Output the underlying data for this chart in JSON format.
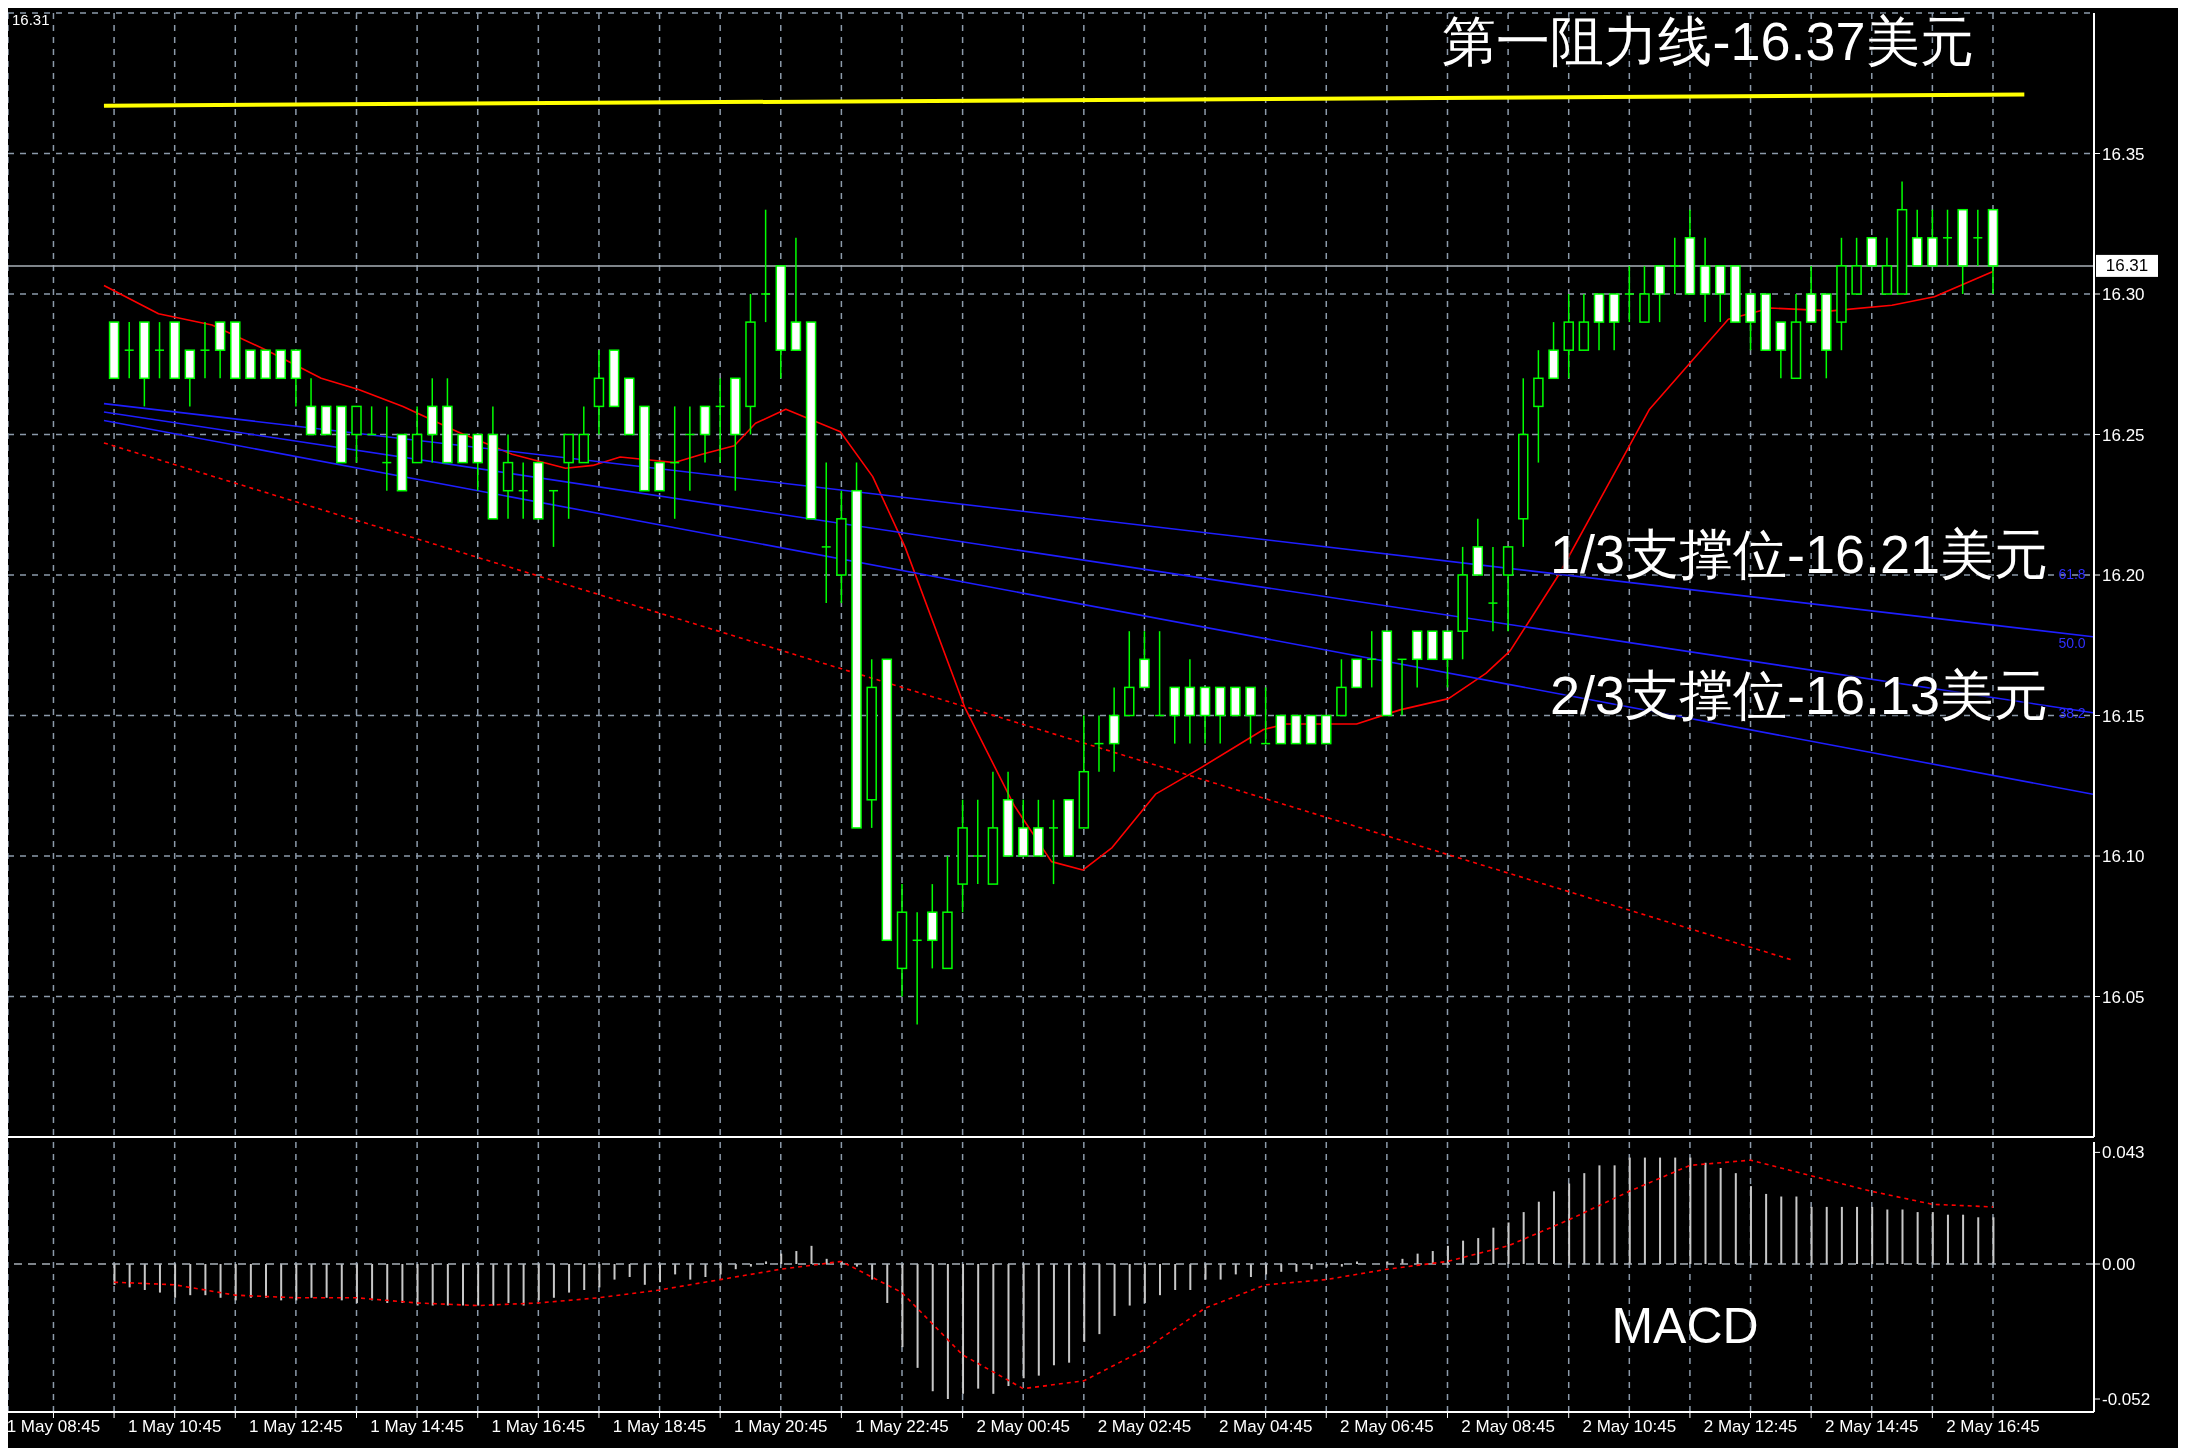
{
  "chart_data": [
    {
      "type": "candlestick",
      "color": "#00ff00",
      "grid": true,
      "tick_labels": "y",
      "xlim": [
        "--05-01T08:00",
        "--05-02T18:25"
      ],
      "xticks": [
        {
          "value": "--05-01T08:45",
          "label": "1 May 08:45"
        },
        {
          "value": "--05-01T09:45",
          "label": null
        },
        {
          "value": "--05-01T10:45",
          "label": "1 May 10:45"
        },
        {
          "value": "--05-01T11:45",
          "label": null
        },
        {
          "value": "--05-01T12:45",
          "label": "1 May 12:45"
        },
        {
          "value": "--05-01T13:45",
          "label": null
        },
        {
          "value": "--05-01T14:45",
          "label": "1 May 14:45"
        },
        {
          "value": "--05-01T15:45",
          "label": null
        },
        {
          "value": "--05-01T16:45",
          "label": "1 May 16:45"
        },
        {
          "value": "--05-01T17:45",
          "label": null
        },
        {
          "value": "--05-01T18:45",
          "label": "1 May 18:45"
        },
        {
          "value": "--05-01T19:45",
          "label": null
        },
        {
          "value": "--05-01T20:45",
          "label": "1 May 20:45"
        },
        {
          "value": "--05-01T21:45",
          "label": null
        },
        {
          "value": "--05-01T22:45",
          "label": "1 May 22:45"
        },
        {
          "value": "--05-01T23:45",
          "label": null
        },
        {
          "value": "--05-02T00:45",
          "label": "2 May 00:45"
        },
        {
          "value": "--05-02T01:45",
          "label": null
        },
        {
          "value": "--05-02T02:45",
          "label": "2 May 02:45"
        },
        {
          "value": "--05-02T03:45",
          "label": null
        },
        {
          "value": "--05-02T04:45",
          "label": "2 May 04:45"
        },
        {
          "value": "--05-02T05:45",
          "label": null
        },
        {
          "value": "--05-02T06:45",
          "label": "2 May 06:45"
        },
        {
          "value": "--05-02T07:45",
          "label": null
        },
        {
          "value": "--05-02T08:45",
          "label": "2 May 08:45"
        },
        {
          "value": "--05-02T09:45",
          "label": null
        },
        {
          "value": "--05-02T10:45",
          "label": "2 May 10:45"
        },
        {
          "value": "--05-02T11:45",
          "label": null
        },
        {
          "value": "--05-02T12:45",
          "label": "2 May 12:45"
        },
        {
          "value": "--05-02T13:45",
          "label": null
        },
        {
          "value": "--05-02T14:45",
          "label": "2 May 14:45"
        },
        {
          "value": "--05-02T15:45",
          "label": null
        },
        {
          "value": "--05-02T16:45",
          "label": "2 May 16:45"
        }
      ],
      "ylim": [
        16.0,
        16.4
      ],
      "yticks": [
        16.05,
        {
          "value": 16.1,
          "label": "16.10"
        },
        16.15,
        {
          "value": 16.2,
          "label": "16.20"
        },
        16.25,
        {
          "value": 16.3,
          "label": "16.30"
        },
        16.35
      ],
      "x": [
        "--05-01T09:45",
        "--05-01T10:00",
        "--05-01T10:15",
        "--05-01T10:30",
        "--05-01T10:45",
        "--05-01T11:00",
        "--05-01T11:15",
        "--05-01T11:30",
        "--05-01T11:45",
        "--05-01T12:00",
        "--05-01T12:15",
        "--05-01T12:30",
        "--05-01T12:45",
        "--05-01T13:00",
        "--05-01T13:15",
        "--05-01T13:30",
        "--05-01T13:45",
        "--05-01T14:00",
        "--05-01T14:15",
        "--05-01T14:30",
        "--05-01T14:45",
        "--05-01T15:00",
        "--05-01T15:15",
        "--05-01T15:30",
        "--05-01T15:45",
        "--05-01T16:00",
        "--05-01T16:15",
        "--05-01T16:30",
        "--05-01T16:45",
        "--05-01T17:00",
        "--05-01T17:15",
        "--05-01T17:30",
        "--05-01T17:45",
        "--05-01T18:00",
        "--05-01T18:15",
        "--05-01T18:30",
        "--05-01T18:45",
        "--05-01T19:00",
        "--05-01T19:15",
        "--05-01T19:30",
        "--05-01T19:45",
        "--05-01T20:00",
        "--05-01T20:15",
        "--05-01T20:30",
        "--05-01T20:45",
        "--05-01T21:00",
        "--05-01T21:15",
        "--05-01T21:30",
        "--05-01T21:45",
        "--05-01T22:00",
        "--05-01T22:15",
        "--05-01T22:30",
        "--05-01T22:45",
        "--05-01T23:00",
        "--05-01T23:15",
        "--05-01T23:30",
        "--05-01T23:45",
        "--05-02T00:00",
        "--05-02T00:15",
        "--05-02T00:30",
        "--05-02T00:45",
        "--05-02T01:00",
        "--05-02T01:15",
        "--05-02T01:30",
        "--05-02T01:45",
        "--05-02T02:00",
        "--05-02T02:15",
        "--05-02T02:30",
        "--05-02T02:45",
        "--05-02T03:00",
        "--05-02T03:15",
        "--05-02T03:30",
        "--05-02T03:45",
        "--05-02T04:00",
        "--05-02T04:15",
        "--05-02T04:30",
        "--05-02T04:45",
        "--05-02T05:00",
        "--05-02T05:15",
        "--05-02T05:30",
        "--05-02T05:45",
        "--05-02T06:00",
        "--05-02T06:15",
        "--05-02T06:30",
        "--05-02T06:45",
        "--05-02T07:00",
        "--05-02T07:15",
        "--05-02T07:30",
        "--05-02T07:45",
        "--05-02T08:00",
        "--05-02T08:15",
        "--05-02T08:30",
        "--05-02T08:45",
        "--05-02T09:00",
        "--05-02T09:15",
        "--05-02T09:30",
        "--05-02T09:45",
        "--05-02T10:00",
        "--05-02T10:15",
        "--05-02T10:30",
        "--05-02T10:45",
        "--05-02T11:00",
        "--05-02T11:15",
        "--05-02T11:30",
        "--05-02T11:45",
        "--05-02T12:00",
        "--05-02T12:15",
        "--05-02T12:30",
        "--05-02T12:45",
        "--05-02T13:00",
        "--05-02T13:15",
        "--05-02T13:30",
        "--05-02T13:45",
        "--05-02T14:00",
        "--05-02T14:15",
        "--05-02T14:30",
        "--05-02T14:45",
        "--05-02T15:00",
        "--05-02T15:15",
        "--05-02T15:30",
        "--05-02T15:45",
        "--05-02T16:00",
        "--05-02T16:15",
        "--05-02T16:30",
        "--05-02T16:45"
      ],
      "ohlc": [
        [
          16.29,
          16.29,
          16.27,
          16.27
        ],
        [
          16.28,
          16.29,
          16.27,
          16.28
        ],
        [
          16.29,
          16.29,
          16.26,
          16.27
        ],
        [
          16.28,
          16.29,
          16.27,
          16.28
        ],
        [
          16.29,
          16.29,
          16.27,
          16.27
        ],
        [
          16.28,
          16.28,
          16.26,
          16.27
        ],
        [
          16.28,
          16.29,
          16.27,
          16.28
        ],
        [
          16.29,
          16.29,
          16.27,
          16.28
        ],
        [
          16.29,
          16.29,
          16.27,
          16.27
        ],
        [
          16.28,
          16.28,
          16.27,
          16.27
        ],
        [
          16.28,
          16.28,
          16.27,
          16.27
        ],
        [
          16.28,
          16.28,
          16.27,
          16.27
        ],
        [
          16.28,
          16.28,
          16.26,
          16.27
        ],
        [
          16.26,
          16.27,
          16.25,
          16.25
        ],
        [
          16.26,
          16.26,
          16.25,
          16.25
        ],
        [
          16.26,
          16.26,
          16.24,
          16.24
        ],
        [
          16.25,
          16.26,
          16.24,
          16.26
        ],
        [
          16.25,
          16.26,
          16.25,
          16.25
        ],
        [
          16.24,
          16.26,
          16.23,
          16.24
        ],
        [
          16.25,
          16.25,
          16.23,
          16.23
        ],
        [
          16.24,
          16.26,
          16.24,
          16.25
        ],
        [
          16.26,
          16.27,
          16.24,
          16.25
        ],
        [
          16.26,
          16.27,
          16.24,
          16.24
        ],
        [
          16.25,
          16.25,
          16.24,
          16.24
        ],
        [
          16.25,
          16.25,
          16.23,
          16.24
        ],
        [
          16.25,
          16.26,
          16.22,
          16.22
        ],
        [
          16.23,
          16.25,
          16.22,
          16.24
        ],
        [
          16.23,
          16.24,
          16.22,
          16.23
        ],
        [
          16.24,
          16.24,
          16.22,
          16.22
        ],
        [
          16.23,
          16.23,
          16.21,
          16.23
        ],
        [
          16.24,
          16.25,
          16.22,
          16.25
        ],
        [
          16.24,
          16.26,
          16.24,
          16.25
        ],
        [
          16.26,
          16.28,
          16.25,
          16.27
        ],
        [
          16.28,
          16.28,
          16.26,
          16.26
        ],
        [
          16.27,
          16.27,
          16.25,
          16.25
        ],
        [
          16.26,
          16.26,
          16.23,
          16.23
        ],
        [
          16.24,
          16.24,
          16.23,
          16.23
        ],
        [
          16.24,
          16.26,
          16.22,
          16.24
        ],
        [
          16.25,
          16.26,
          16.23,
          16.25
        ],
        [
          16.26,
          16.26,
          16.24,
          16.25
        ],
        [
          16.26,
          16.27,
          16.24,
          16.26
        ],
        [
          16.27,
          16.27,
          16.23,
          16.25
        ],
        [
          16.26,
          16.3,
          16.25,
          16.29
        ],
        [
          16.3,
          16.33,
          16.29,
          16.3
        ],
        [
          16.31,
          16.31,
          16.27,
          16.28
        ],
        [
          16.29,
          16.32,
          16.28,
          16.28
        ],
        [
          16.29,
          16.29,
          16.22,
          16.22
        ],
        [
          16.21,
          16.24,
          16.19,
          16.21
        ],
        [
          16.2,
          16.23,
          16.19,
          16.22
        ],
        [
          16.23,
          16.24,
          16.11,
          16.11
        ],
        [
          16.12,
          16.17,
          16.11,
          16.16
        ],
        [
          16.17,
          16.17,
          16.07,
          16.07
        ],
        [
          16.06,
          16.09,
          16.05,
          16.08
        ],
        [
          16.07,
          16.08,
          16.04,
          16.07
        ],
        [
          16.08,
          16.09,
          16.06,
          16.07
        ],
        [
          16.06,
          16.1,
          16.06,
          16.08
        ],
        [
          16.09,
          16.12,
          16.08,
          16.11
        ],
        [
          16.1,
          16.12,
          16.09,
          16.1
        ],
        [
          16.09,
          16.13,
          16.09,
          16.11
        ],
        [
          16.12,
          16.13,
          16.1,
          16.1
        ],
        [
          16.11,
          16.12,
          16.1,
          16.1
        ],
        [
          16.11,
          16.12,
          16.1,
          16.1
        ],
        [
          16.11,
          16.12,
          16.09,
          16.11
        ],
        [
          16.12,
          16.12,
          16.1,
          16.1
        ],
        [
          16.11,
          16.15,
          16.11,
          16.13
        ],
        [
          16.14,
          16.15,
          16.13,
          16.14
        ],
        [
          16.15,
          16.16,
          16.13,
          16.14
        ],
        [
          16.15,
          16.18,
          16.15,
          16.16
        ],
        [
          16.17,
          16.18,
          16.16,
          16.16
        ],
        [
          16.15,
          16.18,
          16.15,
          16.15
        ],
        [
          16.16,
          16.16,
          16.14,
          16.15
        ],
        [
          16.16,
          16.17,
          16.14,
          16.15
        ],
        [
          16.16,
          16.16,
          16.14,
          16.15
        ],
        [
          16.16,
          16.16,
          16.14,
          16.15
        ],
        [
          16.16,
          16.16,
          16.15,
          16.15
        ],
        [
          16.16,
          16.16,
          16.14,
          16.15
        ],
        [
          16.14,
          16.16,
          16.14,
          16.14
        ],
        [
          16.15,
          16.15,
          16.14,
          16.14
        ],
        [
          16.15,
          16.15,
          16.14,
          16.14
        ],
        [
          16.15,
          16.15,
          16.14,
          16.14
        ],
        [
          16.15,
          16.15,
          16.14,
          16.14
        ],
        [
          16.15,
          16.17,
          16.15,
          16.16
        ],
        [
          16.17,
          16.17,
          16.16,
          16.16
        ],
        [
          16.17,
          16.18,
          16.16,
          16.17
        ],
        [
          16.18,
          16.18,
          16.15,
          16.15
        ],
        [
          16.17,
          16.17,
          16.15,
          16.17
        ],
        [
          16.18,
          16.18,
          16.16,
          16.17
        ],
        [
          16.18,
          16.18,
          16.17,
          16.17
        ],
        [
          16.18,
          16.18,
          16.16,
          16.17
        ],
        [
          16.18,
          16.21,
          16.17,
          16.2
        ],
        [
          16.21,
          16.22,
          16.2,
          16.2
        ],
        [
          16.19,
          16.21,
          16.18,
          16.19
        ],
        [
          16.2,
          16.21,
          16.18,
          16.21
        ],
        [
          16.22,
          16.27,
          16.21,
          16.25
        ],
        [
          16.26,
          16.28,
          16.24,
          16.27
        ],
        [
          16.28,
          16.29,
          16.27,
          16.27
        ],
        [
          16.28,
          16.3,
          16.27,
          16.29
        ],
        [
          16.28,
          16.3,
          16.28,
          16.29
        ],
        [
          16.3,
          16.3,
          16.28,
          16.29
        ],
        [
          16.3,
          16.3,
          16.28,
          16.29
        ],
        [
          16.3,
          16.31,
          16.29,
          16.3
        ],
        [
          16.29,
          16.31,
          16.29,
          16.3
        ],
        [
          16.31,
          16.31,
          16.29,
          16.3
        ],
        [
          16.31,
          16.32,
          16.3,
          16.31
        ],
        [
          16.32,
          16.33,
          16.3,
          16.3
        ],
        [
          16.31,
          16.32,
          16.29,
          16.3
        ],
        [
          16.31,
          16.31,
          16.29,
          16.3
        ],
        [
          16.31,
          16.31,
          16.29,
          16.29
        ],
        [
          16.3,
          16.3,
          16.28,
          16.29
        ],
        [
          16.3,
          16.3,
          16.28,
          16.28
        ],
        [
          16.29,
          16.29,
          16.27,
          16.28
        ],
        [
          16.27,
          16.3,
          16.27,
          16.29
        ],
        [
          16.3,
          16.31,
          16.29,
          16.29
        ],
        [
          16.3,
          16.3,
          16.27,
          16.28
        ],
        [
          16.29,
          16.32,
          16.28,
          16.31
        ],
        [
          16.3,
          16.32,
          16.3,
          16.31
        ],
        [
          16.32,
          16.32,
          16.31,
          16.31
        ],
        [
          16.3,
          16.32,
          16.3,
          16.31
        ],
        [
          16.3,
          16.34,
          16.3,
          16.33
        ],
        [
          16.32,
          16.33,
          16.31,
          16.31
        ],
        [
          16.32,
          16.33,
          16.31,
          16.31
        ],
        [
          16.32,
          16.33,
          16.31,
          16.32
        ],
        [
          16.33,
          16.33,
          16.3,
          16.31
        ],
        [
          16.32,
          16.33,
          16.31,
          16.32
        ],
        [
          16.33,
          16.33,
          16.3,
          16.31
        ]
      ],
      "series": [
        {
          "type": "line",
          "color": "#ff0000",
          "x": [
            "--05-01T09:35",
            "--05-01T10:29",
            "--05-01T11:22",
            "--05-01T12:16",
            "--05-01T13:10",
            "--05-01T13:47",
            "--05-01T14:31",
            "--05-01T15:25",
            "--05-01T16:19",
            "--05-01T17:12",
            "--05-01T17:39",
            "--05-01T18:06",
            "--05-01T18:33",
            "--05-01T19:00",
            "--05-01T19:27",
            "--05-01T19:59",
            "--05-01T20:20",
            "--05-01T20:50",
            "--05-01T21:44",
            "--05-01T22:16",
            "--05-01T22:48",
            "--05-01T23:47",
            "--05-02T00:36",
            "--05-02T01:13",
            "--05-02T01:44",
            "--05-02T02:13",
            "--05-02T02:56",
            "--05-02T03:39",
            "--05-02T04:43",
            "--05-02T05:05",
            "--05-02T06:15",
            "--05-02T06:58",
            "--05-02T07:46",
            "--05-02T08:23",
            "--05-02T08:47",
            "--05-02T09:35",
            "--05-02T11:05",
            "--05-02T12:23",
            "--05-02T13:05",
            "--05-02T14:05",
            "--05-02T15:05",
            "--05-02T15:47",
            "--05-02T16:45"
          ],
          "values": [
            16.303,
            16.293,
            16.289,
            16.28,
            16.27,
            16.266,
            16.26,
            16.251,
            16.243,
            16.238,
            16.239,
            16.242,
            16.241,
            16.24,
            16.243,
            16.246,
            16.254,
            16.259,
            16.251,
            16.235,
            16.21,
            16.153,
            16.118,
            16.098,
            16.095,
            16.103,
            16.122,
            16.131,
            16.145,
            16.147,
            16.147,
            16.152,
            16.156,
            16.165,
            16.173,
            16.2,
            16.259,
            16.291,
            16.295,
            16.294,
            16.296,
            16.299,
            16.308
          ]
        },
        {
          "type": "line",
          "color": "#1e1eff",
          "x": [
            "--05-01T09:35",
            "--05-02T18:24"
          ],
          "values": [
            16.261,
            16.178
          ]
        },
        {
          "type": "line",
          "color": "#1e1eff",
          "x": [
            "--05-01T09:35",
            "--05-02T18:24"
          ],
          "values": [
            16.258,
            16.151
          ]
        },
        {
          "type": "line",
          "color": "#1e1eff",
          "x": [
            "--05-01T09:35",
            "--05-02T18:24"
          ],
          "values": [
            16.255,
            16.122
          ]
        },
        {
          "type": "line",
          "color": "#ff0000",
          "line_style": "dotted",
          "x": [
            "--05-01T09:35",
            "--05-02T13:26"
          ],
          "values": [
            16.247,
            16.063
          ]
        },
        {
          "type": "line",
          "color": "#ffff00",
          "x": [
            "--05-01T09:35",
            "--05-02T17:16"
          ],
          "values": [
            16.367,
            16.371
          ]
        }
      ],
      "ref_lines": [
        {
          "axis": "y",
          "value": 16.31,
          "label": "16.31",
          "color": "#a8b0b8"
        }
      ],
      "annotations": [
        "16.31",
        "第一阻力线-16.37美元",
        "1/3支撑位-16.21美元",
        "2/3支撑位-16.13美元",
        "61.8",
        "50.0",
        "38.2"
      ]
    },
    {
      "type": "bar",
      "grid": "x",
      "xlim": [
        "--05-01T08:00",
        "--05-02T18:25"
      ],
      "xticks": [
        {
          "value": "--05-01T08:45",
          "label": "1 May 08:45"
        },
        {
          "value": "--05-01T09:45",
          "label": null
        },
        {
          "value": "--05-01T10:45",
          "label": "1 May 10:45"
        },
        {
          "value": "--05-01T11:45",
          "label": null
        },
        {
          "value": "--05-01T12:45",
          "label": "1 May 12:45"
        },
        {
          "value": "--05-01T13:45",
          "label": null
        },
        {
          "value": "--05-01T14:45",
          "label": "1 May 14:45"
        },
        {
          "value": "--05-01T15:45",
          "label": null
        },
        {
          "value": "--05-01T16:45",
          "label": "1 May 16:45"
        },
        {
          "value": "--05-01T17:45",
          "label": null
        },
        {
          "value": "--05-01T18:45",
          "label": "1 May 18:45"
        },
        {
          "value": "--05-01T19:45",
          "label": null
        },
        {
          "value": "--05-01T20:45",
          "label": "1 May 20:45"
        },
        {
          "value": "--05-01T21:45",
          "label": null
        },
        {
          "value": "--05-01T22:45",
          "label": "1 May 22:45"
        },
        {
          "value": "--05-01T23:45",
          "label": null
        },
        {
          "value": "--05-02T00:45",
          "label": "2 May 00:45"
        },
        {
          "value": "--05-02T01:45",
          "label": null
        },
        {
          "value": "--05-02T02:45",
          "label": "2 May 02:45"
        },
        {
          "value": "--05-02T03:45",
          "label": null
        },
        {
          "value": "--05-02T04:45",
          "label": "2 May 04:45"
        },
        {
          "value": "--05-02T05:45",
          "label": null
        },
        {
          "value": "--05-02T06:45",
          "label": "2 May 06:45"
        },
        {
          "value": "--05-02T07:45",
          "label": null
        },
        {
          "value": "--05-02T08:45",
          "label": "2 May 08:45"
        },
        {
          "value": "--05-02T09:45",
          "label": null
        },
        {
          "value": "--05-02T10:45",
          "label": "2 May 10:45"
        },
        {
          "value": "--05-02T11:45",
          "label": null
        },
        {
          "value": "--05-02T12:45",
          "label": "2 May 12:45"
        },
        {
          "value": "--05-02T13:45",
          "label": null
        },
        {
          "value": "--05-02T14:45",
          "label": "2 May 14:45"
        },
        {
          "value": "--05-02T15:45",
          "label": null
        },
        {
          "value": "--05-02T16:45",
          "label": "2 May 16:45"
        }
      ],
      "ylim": [
        -0.057,
        0.047
      ],
      "yticks": [
        -0.052,
        {
          "value": 0,
          "label": "0.00"
        },
        0.043
      ],
      "x": [
        "--05-01T09:45",
        "--05-01T10:00",
        "--05-01T10:15",
        "--05-01T10:30",
        "--05-01T10:45",
        "--05-01T11:00",
        "--05-01T11:15",
        "--05-01T11:30",
        "--05-01T11:45",
        "--05-01T12:00",
        "--05-01T12:15",
        "--05-01T12:30",
        "--05-01T12:45",
        "--05-01T13:00",
        "--05-01T13:15",
        "--05-01T13:30",
        "--05-01T13:45",
        "--05-01T14:00",
        "--05-01T14:15",
        "--05-01T14:30",
        "--05-01T14:45",
        "--05-01T15:00",
        "--05-01T15:15",
        "--05-01T15:30",
        "--05-01T15:45",
        "--05-01T16:00",
        "--05-01T16:15",
        "--05-01T16:30",
        "--05-01T16:45",
        "--05-01T17:00",
        "--05-01T17:15",
        "--05-01T17:30",
        "--05-01T17:45",
        "--05-01T18:00",
        "--05-01T18:15",
        "--05-01T18:30",
        "--05-01T18:45",
        "--05-01T19:00",
        "--05-01T19:15",
        "--05-01T19:30",
        "--05-01T19:45",
        "--05-01T20:00",
        "--05-01T20:15",
        "--05-01T20:30",
        "--05-01T20:45",
        "--05-01T21:00",
        "--05-01T21:15",
        "--05-01T21:30",
        "--05-01T21:45",
        "--05-01T22:00",
        "--05-01T22:15",
        "--05-01T22:30",
        "--05-01T22:45",
        "--05-01T23:00",
        "--05-01T23:15",
        "--05-01T23:30",
        "--05-01T23:45",
        "--05-02T00:00",
        "--05-02T00:15",
        "--05-02T00:30",
        "--05-02T00:45",
        "--05-02T01:00",
        "--05-02T01:15",
        "--05-02T01:30",
        "--05-02T01:45",
        "--05-02T02:00",
        "--05-02T02:15",
        "--05-02T02:30",
        "--05-02T02:45",
        "--05-02T03:00",
        "--05-02T03:15",
        "--05-02T03:30",
        "--05-02T03:45",
        "--05-02T04:00",
        "--05-02T04:15",
        "--05-02T04:30",
        "--05-02T04:45",
        "--05-02T05:00",
        "--05-02T05:15",
        "--05-02T05:30",
        "--05-02T05:45",
        "--05-02T06:00",
        "--05-02T06:15",
        "--05-02T06:30",
        "--05-02T06:45",
        "--05-02T07:00",
        "--05-02T07:15",
        "--05-02T07:30",
        "--05-02T07:45",
        "--05-02T08:00",
        "--05-02T08:15",
        "--05-02T08:30",
        "--05-02T08:45",
        "--05-02T09:00",
        "--05-02T09:15",
        "--05-02T09:30",
        "--05-02T09:45",
        "--05-02T10:00",
        "--05-02T10:15",
        "--05-02T10:30",
        "--05-02T10:45",
        "--05-02T11:00",
        "--05-02T11:15",
        "--05-02T11:30",
        "--05-02T11:45",
        "--05-02T12:00",
        "--05-02T12:15",
        "--05-02T12:30",
        "--05-02T12:45",
        "--05-02T13:00",
        "--05-02T13:15",
        "--05-02T13:30",
        "--05-02T13:45",
        "--05-02T14:00",
        "--05-02T14:15",
        "--05-02T14:30",
        "--05-02T14:45",
        "--05-02T15:00",
        "--05-02T15:15",
        "--05-02T15:30",
        "--05-02T15:45",
        "--05-02T16:00",
        "--05-02T16:15",
        "--05-02T16:30",
        "--05-02T16:45"
      ],
      "series": [
        {
          "type": "bar",
          "color": "#c8c8c8",
          "values": [
            -0.008,
            -0.009,
            -0.01,
            -0.011,
            -0.013,
            -0.012,
            -0.012,
            -0.013,
            -0.014,
            -0.013,
            -0.013,
            -0.014,
            -0.014,
            -0.013,
            -0.013,
            -0.014,
            -0.015,
            -0.014,
            -0.015,
            -0.015,
            -0.016,
            -0.016,
            -0.016,
            -0.016,
            -0.016,
            -0.016,
            -0.015,
            -0.016,
            -0.014,
            -0.013,
            -0.011,
            -0.01,
            -0.009,
            -0.006,
            -0.005,
            -0.008,
            -0.007,
            -0.004,
            -0.006,
            -0.005,
            -0.004,
            -0.002,
            -0.001,
            0.001,
            0.004,
            0.005,
            0.007,
            0.002,
            0.001,
            -0.001,
            -0.006,
            -0.015,
            -0.032,
            -0.04,
            -0.049,
            -0.052,
            -0.05,
            -0.048,
            -0.05,
            -0.047,
            -0.044,
            -0.043,
            -0.039,
            -0.038,
            -0.03,
            -0.027,
            -0.02,
            -0.016,
            -0.015,
            -0.012,
            -0.01,
            -0.01,
            -0.006,
            -0.006,
            -0.004,
            -0.005,
            -0.004,
            -0.003,
            -0.003,
            -0.002,
            -0.001,
            -0.001,
            0.001,
            0.0,
            0.001,
            0.002,
            0.004,
            0.005,
            0.007,
            0.009,
            0.01,
            0.014,
            0.016,
            0.02,
            0.024,
            0.028,
            0.031,
            0.035,
            0.038,
            0.038,
            0.041,
            0.041,
            0.041,
            0.041,
            0.041,
            0.039,
            0.037,
            0.035,
            0.03,
            0.027,
            0.026,
            0.026,
            0.022,
            0.022,
            0.022,
            0.022,
            0.022,
            0.021,
            0.021,
            0.02,
            0.02,
            0.019,
            0.019,
            0.018,
            0.018
          ]
        },
        {
          "type": "line",
          "color": "#ff0000",
          "line_style": "dotted",
          "x": [
            "--05-01T09:45",
            "--05-01T10:45",
            "--05-01T11:45",
            "--05-01T12:45",
            "--05-01T13:45",
            "--05-01T14:45",
            "--05-01T15:45",
            "--05-01T16:45",
            "--05-01T17:45",
            "--05-01T18:45",
            "--05-01T19:45",
            "--05-01T20:45",
            "--05-01T21:45",
            "--05-01T22:45",
            "--05-01T23:45",
            "--05-02T00:45",
            "--05-02T01:45",
            "--05-02T02:45",
            "--05-02T03:45",
            "--05-02T04:45",
            "--05-02T05:45",
            "--05-02T06:45",
            "--05-02T07:45",
            "--05-02T08:45",
            "--05-02T09:45",
            "--05-02T10:45",
            "--05-02T11:45",
            "--05-02T12:45",
            "--05-02T13:45",
            "--05-02T14:45",
            "--05-02T15:45",
            "--05-02T16:45"
          ],
          "values": [
            -0.007,
            -0.008,
            -0.012,
            -0.013,
            -0.013,
            -0.015,
            -0.016,
            -0.015,
            -0.013,
            -0.01,
            -0.006,
            -0.002,
            0.001,
            -0.011,
            -0.035,
            -0.048,
            -0.045,
            -0.033,
            -0.017,
            -0.008,
            -0.006,
            -0.002,
            0.001,
            0.007,
            0.017,
            0.028,
            0.038,
            0.04,
            0.034,
            0.028,
            0.023,
            0.022
          ]
        }
      ],
      "ref_lines": [
        {
          "axis": "y",
          "value": 0,
          "color": "#a8b0b8",
          "line_style": "dashed"
        }
      ],
      "annotations": [
        "MACD"
      ]
    }
  ]
}
